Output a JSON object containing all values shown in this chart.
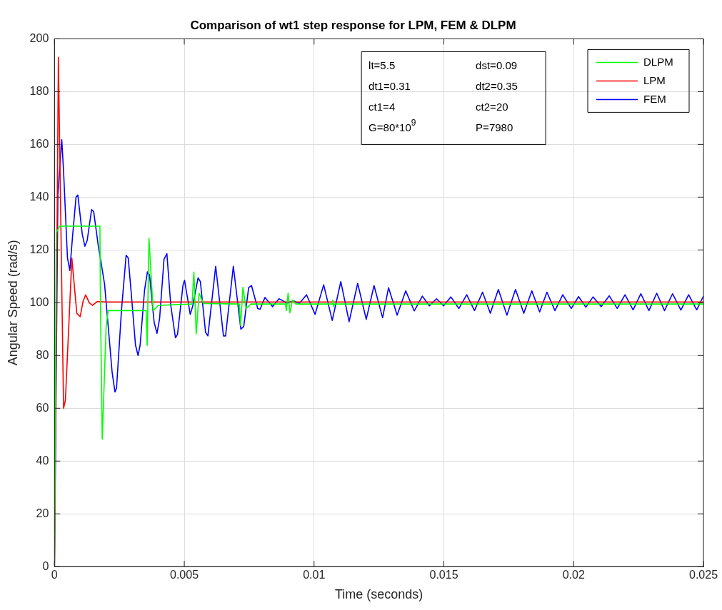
{
  "chart_data": {
    "type": "line",
    "title": "Comparison of wt1 step response for LPM, FEM & DLPM",
    "xlabel": "Time (seconds)",
    "ylabel": "Angular Speed (rad/s)",
    "xlim": [
      0,
      0.025
    ],
    "xticks": [
      0,
      0.005,
      0.01,
      0.015,
      0.02,
      0.025
    ],
    "ylim": [
      0,
      200
    ],
    "yticks": [
      0,
      20,
      40,
      60,
      80,
      100,
      120,
      140,
      160,
      180,
      200
    ],
    "grid": true,
    "legend": "top right",
    "marker": "none",
    "line_style": "solid",
    "annotations": [
      "lt=5.5",
      "dst=0.09",
      "dt1=0.31",
      "dt2=0.35",
      "ct1=4",
      "ct2=20",
      "G=80*10$^{9}$",
      "P=7980"
    ],
    "series": [
      {
        "name": "DLPM",
        "color": "#00ff00",
        "x": [
          0,
          7e-05,
          0.0002,
          0.00175,
          0.00177,
          0.00184,
          0.00199,
          0.00207,
          0.0022,
          0.00353,
          0.00357,
          0.00364,
          0.0038,
          0.004,
          0.0053,
          0.00537,
          0.00546,
          0.00557,
          0.00574,
          0.00712,
          0.00717,
          0.00726,
          0.00738,
          0.00757,
          0.0089,
          0.00893,
          0.009,
          0.00907,
          0.00917,
          0.0093,
          0.0107,
          0.01072,
          0.01076,
          0.0108,
          0.025
        ],
        "values": [
          0,
          126.6,
          129,
          129,
          100,
          48.3,
          91,
          97,
          97,
          97,
          83.8,
          124.4,
          97,
          99,
          99.5,
          111.6,
          88.2,
          103.6,
          99.7,
          99.5,
          91.4,
          105.8,
          97.8,
          99.5,
          99.5,
          97,
          103.6,
          96.2,
          101,
          99.5,
          99.5,
          101,
          98.5,
          99.5,
          99.5
        ]
      },
      {
        "name": "LPM",
        "color": "#ff0000",
        "x": [
          0,
          0.00015,
          0.00035,
          0.00042,
          0.00067,
          0.00086,
          0.00099,
          0.0011,
          0.0012,
          0.00134,
          0.00146,
          0.00166,
          0.002,
          0.025
        ],
        "values": [
          0,
          193,
          60,
          63,
          116.8,
          96,
          94.7,
          100.5,
          103,
          100,
          99,
          100.5,
          100.3,
          100.3
        ]
      },
      {
        "name": "FEM",
        "color": "#0000ff",
        "x": [
          0,
          0.00013,
          0.00028,
          0.00035,
          0.0005,
          0.00059,
          0.00069,
          0.00083,
          0.0009,
          0.00107,
          0.00117,
          0.00126,
          0.00143,
          0.00151,
          0.00169,
          0.00179,
          0.00193,
          0.00212,
          0.00222,
          0.00233,
          0.00239,
          0.00258,
          0.00276,
          0.00284,
          0.00296,
          0.00312,
          0.00322,
          0.0033,
          0.00347,
          0.00358,
          0.00366,
          0.00384,
          0.00395,
          0.00405,
          0.00422,
          0.00433,
          0.00448,
          0.00466,
          0.00474,
          0.00495,
          0.00501,
          0.00523,
          0.00532,
          0.00553,
          0.00562,
          0.00582,
          0.00591,
          0.00621,
          0.00651,
          0.00659,
          0.00689,
          0.00718,
          0.00729,
          0.00748,
          0.00759,
          0.00783,
          0.00792,
          0.00811,
          0.0084,
          0.00865,
          0.00875,
          0.00895,
          0.00921,
          0.00943,
          0.00971,
          0.01004,
          0.01037,
          0.0107,
          0.01103,
          0.01135,
          0.01168,
          0.01201,
          0.01231,
          0.01264,
          0.01287,
          0.0132,
          0.01353,
          0.01386,
          0.01417,
          0.01444,
          0.01472,
          0.01499,
          0.01527,
          0.01558,
          0.01588,
          0.01618,
          0.01649,
          0.01679,
          0.0171,
          0.01743,
          0.01776,
          0.01808,
          0.01839,
          0.01869,
          0.01897,
          0.01928,
          0.01958,
          0.01991,
          0.02019,
          0.02047,
          0.02075,
          0.02106,
          0.02137,
          0.02168,
          0.02198,
          0.02229,
          0.02259,
          0.0229,
          0.0232,
          0.0235,
          0.02381,
          0.02413,
          0.02443,
          0.02474,
          0.025
        ],
        "values": [
          0,
          141,
          161.8,
          149.8,
          117,
          112.2,
          124.4,
          140,
          140.8,
          126,
          121.4,
          123.6,
          135.3,
          134.5,
          121.4,
          115.5,
          107,
          85.2,
          73.7,
          66.2,
          67.6,
          97,
          118,
          117,
          103.3,
          84,
          80,
          84,
          104.8,
          111.7,
          110.6,
          92.5,
          88.4,
          94,
          116.5,
          118.6,
          99,
          86.7,
          88,
          106.6,
          108.5,
          95.6,
          98.5,
          109.4,
          108,
          88.8,
          87.4,
          113.8,
          87.4,
          87.4,
          113.8,
          90,
          91,
          105.7,
          106.5,
          97.8,
          97.5,
          102,
          98.5,
          101.5,
          101,
          99.8,
          100.7,
          99.7,
          103,
          95.6,
          106.8,
          93.3,
          108,
          92.8,
          107.3,
          93.7,
          106.5,
          94.3,
          105.7,
          95.3,
          104.5,
          96.9,
          102.5,
          98.8,
          101.5,
          98.8,
          102.2,
          97.8,
          103,
          97,
          104,
          96,
          105,
          95.3,
          105,
          96,
          104.5,
          96.5,
          104,
          97,
          103,
          97.8,
          102.3,
          98.3,
          102.2,
          98.5,
          102.6,
          97.8,
          103,
          97.3,
          103.4,
          97,
          103.6,
          97,
          103.4,
          97.2,
          103,
          97.3,
          102.5
        ]
      }
    ]
  }
}
